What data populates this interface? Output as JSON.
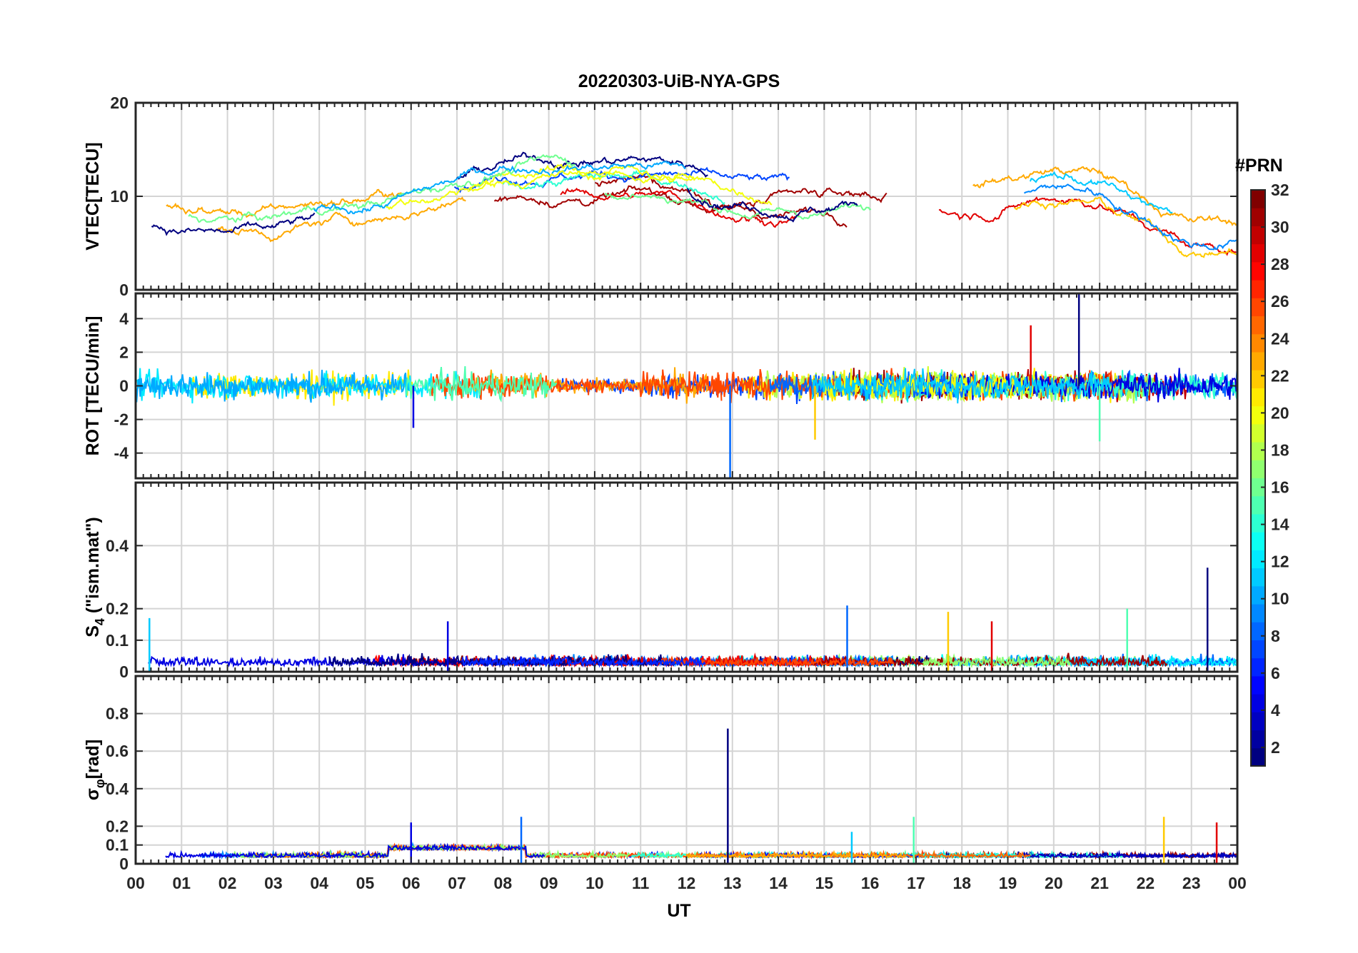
{
  "chart_data": {
    "type": "line",
    "title": "20220303-UiB-NYA-GPS",
    "xlabel": "UT",
    "x_tick_labels": [
      "00",
      "01",
      "02",
      "03",
      "04",
      "05",
      "06",
      "07",
      "08",
      "09",
      "10",
      "11",
      "12",
      "13",
      "14",
      "15",
      "16",
      "17",
      "18",
      "19",
      "20",
      "21",
      "22",
      "23",
      "00"
    ],
    "xlim": [
      0,
      24
    ],
    "series_legend": "satellites colored by PRN",
    "colorbar": {
      "title": "#PRN",
      "range": [
        1,
        32
      ],
      "ticks": [
        2,
        4,
        6,
        8,
        10,
        12,
        14,
        16,
        18,
        20,
        22,
        24,
        26,
        28,
        30,
        32
      ],
      "colormap": "jet"
    },
    "panels": [
      {
        "name": "vtec",
        "ylabel": "VTEC[TECU]",
        "ylim": [
          0,
          20
        ],
        "yticks": [
          0,
          10,
          20
        ],
        "profile": {
          "x": [
            0,
            1,
            2,
            3,
            4,
            5,
            6,
            7,
            8,
            9,
            10,
            11,
            12,
            13,
            14,
            15,
            16,
            17,
            18,
            19,
            20,
            21,
            22,
            23,
            24
          ],
          "mean": [
            7,
            6.5,
            6,
            6,
            7,
            7.5,
            8.5,
            10,
            11.5,
            12,
            12,
            12,
            11.5,
            10.5,
            10,
            10,
            10.5,
            10.5,
            10,
            11,
            12,
            11.5,
            9,
            6.5,
            6.5
          ]
        }
      },
      {
        "name": "rot",
        "ylabel": "ROT [TECU/min]",
        "ylim": [
          -5.5,
          5.5
        ],
        "yticks": [
          -4,
          -2,
          0,
          2,
          4
        ],
        "spikes": [
          [
            20.55,
            5.5
          ],
          [
            12.95,
            -5.5
          ],
          [
            21.0,
            -3.3
          ],
          [
            14.8,
            -3.2
          ],
          [
            19.5,
            3.6
          ],
          [
            6.05,
            -2.5
          ]
        ]
      },
      {
        "name": "s4",
        "ylabel": "S4 (\"ism.mat\")",
        "ylabel_main": "S",
        "ylabel_sub": "4",
        "ylabel_rest": " (\"ism.mat\")",
        "ylim": [
          0,
          0.6
        ],
        "yticks": [
          0,
          0.1,
          0.2,
          0.4
        ],
        "ytick_labels": [
          "0",
          "0.1",
          "0.2",
          "0.4"
        ],
        "spikes": [
          [
            23.35,
            0.33
          ],
          [
            15.5,
            0.21
          ],
          [
            21.6,
            0.2
          ],
          [
            17.7,
            0.19
          ],
          [
            18.65,
            0.16
          ],
          [
            6.8,
            0.16
          ],
          [
            0.3,
            0.17
          ]
        ]
      },
      {
        "name": "sigma_phi",
        "ylabel": "σφ[rad]",
        "ylabel_main": "σ",
        "ylabel_sub": "φ",
        "ylabel_rest": "[rad]",
        "ylim": [
          0,
          1.0
        ],
        "yticks": [
          0,
          0.1,
          0.2,
          0.4,
          0.6,
          0.8
        ],
        "ytick_labels": [
          "0",
          "0.1",
          "0.2",
          "0.4",
          "0.6",
          "0.8"
        ],
        "spikes": [
          [
            12.9,
            0.72
          ],
          [
            8.4,
            0.25
          ],
          [
            16.95,
            0.25
          ],
          [
            22.4,
            0.25
          ],
          [
            23.55,
            0.22
          ],
          [
            6.0,
            0.22
          ],
          [
            15.6,
            0.17
          ]
        ]
      }
    ]
  }
}
